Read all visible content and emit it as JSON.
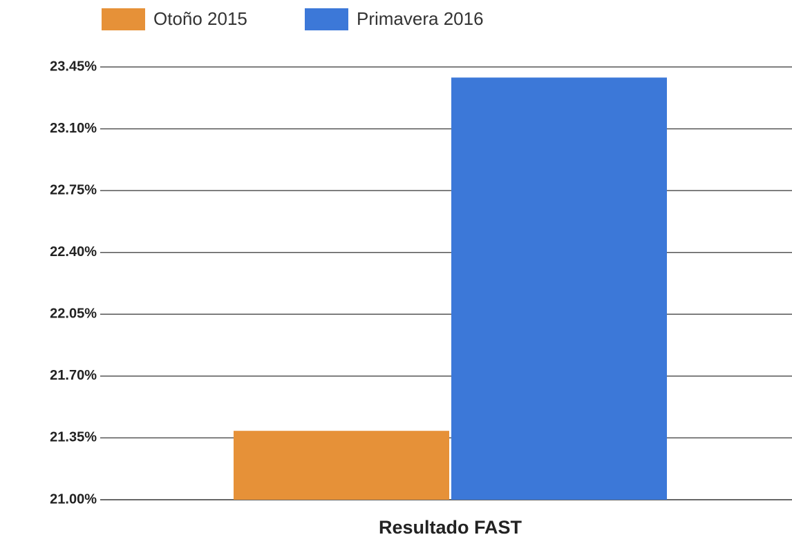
{
  "chart_data": {
    "type": "bar",
    "categories": [
      "Resultado FAST"
    ],
    "series": [
      {
        "name": "Otoño 2015",
        "color": "#e69138",
        "values": [
          21.39
        ]
      },
      {
        "name": "Primavera 2016",
        "color": "#3c78d8",
        "values": [
          23.39
        ]
      }
    ],
    "ylim": [
      21.0,
      23.45
    ],
    "yticks": [
      {
        "value": 21.0,
        "label": "21.00%"
      },
      {
        "value": 21.35,
        "label": "21.35%"
      },
      {
        "value": 21.7,
        "label": "21.70%"
      },
      {
        "value": 22.05,
        "label": "22.05%"
      },
      {
        "value": 22.4,
        "label": "22.40%"
      },
      {
        "value": 22.75,
        "label": "22.75%"
      },
      {
        "value": 23.1,
        "label": "23.10%"
      },
      {
        "value": 23.45,
        "label": "23.45%"
      }
    ],
    "grid": true,
    "legend": "top"
  }
}
